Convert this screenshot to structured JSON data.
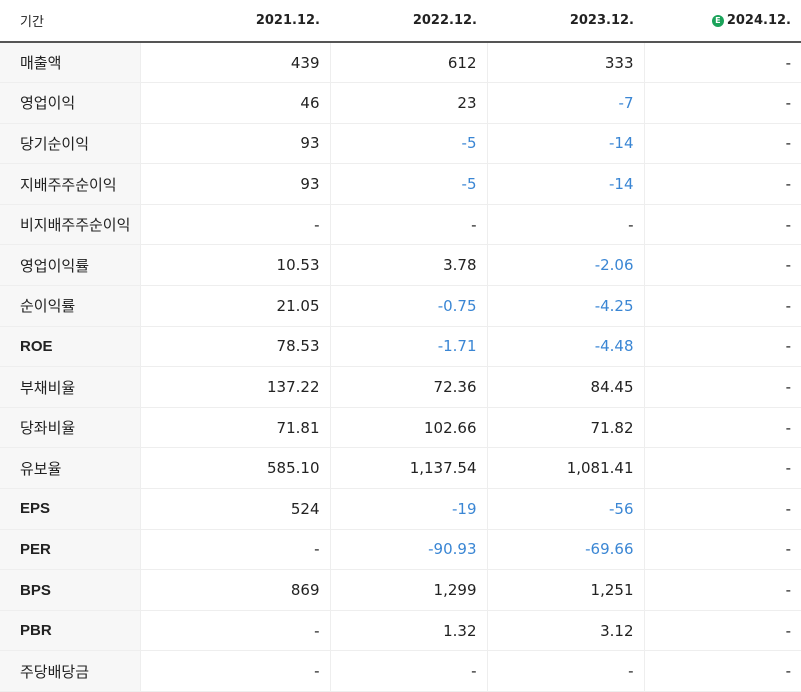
{
  "header": {
    "label": "기간",
    "periods": [
      "2021.12.",
      "2022.12.",
      "2023.12.",
      "2024.12."
    ],
    "estimate_badge": "E",
    "estimate_color": "#1ba35a"
  },
  "colors": {
    "negative": "#3a86d4"
  },
  "rows": [
    {
      "label": "매출액",
      "values": [
        "439",
        "612",
        "333",
        "-"
      ]
    },
    {
      "label": "영업이익",
      "values": [
        "46",
        "23",
        "-7",
        "-"
      ]
    },
    {
      "label": "당기순이익",
      "values": [
        "93",
        "-5",
        "-14",
        "-"
      ]
    },
    {
      "label": "지배주주순이익",
      "values": [
        "93",
        "-5",
        "-14",
        "-"
      ]
    },
    {
      "label": "비지배주주순이익",
      "values": [
        "-",
        "-",
        "-",
        "-"
      ]
    },
    {
      "label": "영업이익률",
      "values": [
        "10.53",
        "3.78",
        "-2.06",
        "-"
      ]
    },
    {
      "label": "순이익률",
      "values": [
        "21.05",
        "-0.75",
        "-4.25",
        "-"
      ]
    },
    {
      "label": "ROE",
      "values": [
        "78.53",
        "-1.71",
        "-4.48",
        "-"
      ]
    },
    {
      "label": "부채비율",
      "values": [
        "137.22",
        "72.36",
        "84.45",
        "-"
      ]
    },
    {
      "label": "당좌비율",
      "values": [
        "71.81",
        "102.66",
        "71.82",
        "-"
      ]
    },
    {
      "label": "유보율",
      "values": [
        "585.10",
        "1,137.54",
        "1,081.41",
        "-"
      ]
    },
    {
      "label": "EPS",
      "values": [
        "524",
        "-19",
        "-56",
        "-"
      ]
    },
    {
      "label": "PER",
      "values": [
        "-",
        "-90.93",
        "-69.66",
        "-"
      ]
    },
    {
      "label": "BPS",
      "values": [
        "869",
        "1,299",
        "1,251",
        "-"
      ]
    },
    {
      "label": "PBR",
      "values": [
        "-",
        "1.32",
        "3.12",
        "-"
      ]
    },
    {
      "label": "주당배당금",
      "values": [
        "-",
        "-",
        "-",
        "-"
      ]
    }
  ]
}
